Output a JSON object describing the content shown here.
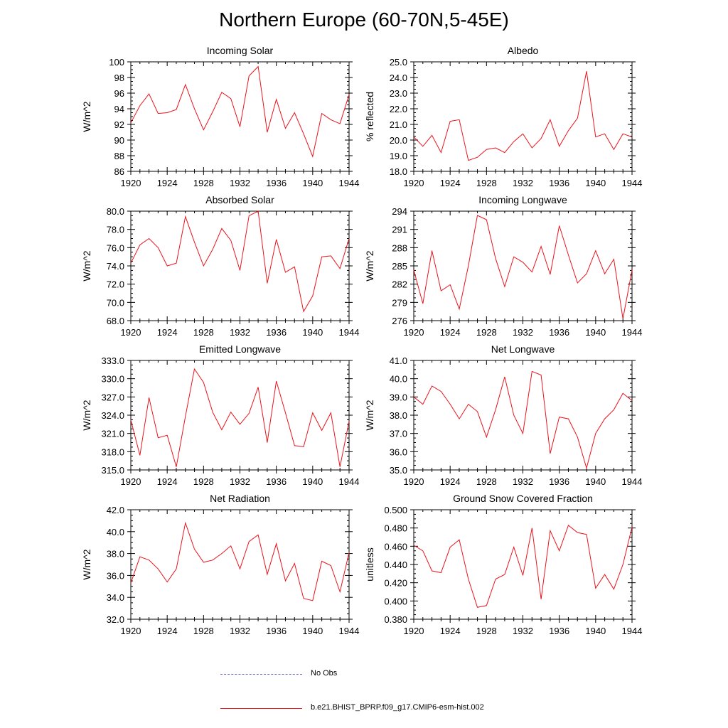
{
  "title": "Northern Europe (60-70N,5-45E)",
  "colors": {
    "model": "#e8141c",
    "obs": "#6d72c6",
    "axis": "#000000"
  },
  "legend": {
    "obs_label": "No Obs",
    "model_label": "b.e21.BHIST_BPRP.f09_g17.CMIP6-esm-hist.002"
  },
  "chart_data": [
    {
      "type": "line",
      "title": "Incoming Solar",
      "ylabel": "W/m^2",
      "xlim": [
        1920,
        1944
      ],
      "ylim": [
        86,
        100
      ],
      "xticks": [
        "1920",
        "1924",
        "1928",
        "1932",
        "1936",
        "1940",
        "1944"
      ],
      "yticks": [
        "86",
        "88",
        "90",
        "92",
        "94",
        "96",
        "98",
        "100"
      ],
      "ytick_values": [
        86,
        88,
        90,
        92,
        94,
        96,
        98,
        100
      ],
      "x": [
        1920,
        1921,
        1922,
        1923,
        1924,
        1925,
        1926,
        1927,
        1928,
        1929,
        1930,
        1931,
        1932,
        1933,
        1934,
        1935,
        1936,
        1937,
        1938,
        1939,
        1940,
        1941,
        1942,
        1943,
        1944
      ],
      "series": [
        {
          "name": "b.e21.BHIST_BPRP.f09_g17.CMIP6-esm-hist.002",
          "values": [
            92.2,
            94.4,
            95.9,
            93.4,
            93.5,
            93.9,
            97.1,
            94.0,
            91.3,
            93.6,
            96.1,
            95.3,
            91.7,
            98.2,
            99.4,
            91.0,
            95.2,
            91.5,
            93.5,
            90.8,
            87.9,
            93.4,
            92.6,
            92.1,
            95.8
          ]
        }
      ]
    },
    {
      "type": "line",
      "title": "Albedo",
      "ylabel": "% reflected",
      "xlim": [
        1920,
        1944
      ],
      "ylim": [
        18,
        25
      ],
      "xticks": [
        "1920",
        "1924",
        "1928",
        "1932",
        "1936",
        "1940",
        "1944"
      ],
      "yticks": [
        "18.0",
        "19.0",
        "20.0",
        "21.0",
        "22.0",
        "23.0",
        "24.0",
        "25.0"
      ],
      "ytick_values": [
        18,
        19,
        20,
        21,
        22,
        23,
        24,
        25
      ],
      "x": [
        1920,
        1921,
        1922,
        1923,
        1924,
        1925,
        1926,
        1927,
        1928,
        1929,
        1930,
        1931,
        1932,
        1933,
        1934,
        1935,
        1936,
        1937,
        1938,
        1939,
        1940,
        1941,
        1942,
        1943,
        1944
      ],
      "series": [
        {
          "name": "b.e21.BHIST_BPRP.f09_g17.CMIP6-esm-hist.002",
          "values": [
            20.2,
            19.6,
            20.3,
            19.2,
            21.2,
            21.3,
            18.7,
            18.9,
            19.4,
            19.5,
            19.2,
            19.9,
            20.4,
            19.5,
            20.1,
            21.3,
            19.6,
            20.6,
            21.4,
            24.4,
            20.2,
            20.4,
            19.4,
            20.4,
            20.2
          ]
        }
      ]
    },
    {
      "type": "line",
      "title": "Absorbed Solar",
      "ylabel": "W/m^2",
      "xlim": [
        1920,
        1944
      ],
      "ylim": [
        68,
        80
      ],
      "xticks": [
        "1920",
        "1924",
        "1928",
        "1932",
        "1936",
        "1940",
        "1944"
      ],
      "yticks": [
        "68.0",
        "70.0",
        "72.0",
        "74.0",
        "76.0",
        "78.0",
        "80.0"
      ],
      "ytick_values": [
        68,
        70,
        72,
        74,
        76,
        78,
        80
      ],
      "x": [
        1920,
        1921,
        1922,
        1923,
        1924,
        1925,
        1926,
        1927,
        1928,
        1929,
        1930,
        1931,
        1932,
        1933,
        1934,
        1935,
        1936,
        1937,
        1938,
        1939,
        1940,
        1941,
        1942,
        1943,
        1944
      ],
      "series": [
        {
          "name": "b.e21.BHIST_BPRP.f09_g17.CMIP6-esm-hist.002",
          "values": [
            74.3,
            76.3,
            77.0,
            76.0,
            74.0,
            74.3,
            79.4,
            76.6,
            74.0,
            75.8,
            78.1,
            76.8,
            73.5,
            79.5,
            80.0,
            72.1,
            76.9,
            73.3,
            73.9,
            69.0,
            70.7,
            75.0,
            75.1,
            73.7,
            77.0
          ]
        }
      ]
    },
    {
      "type": "line",
      "title": "Incoming Longwave",
      "ylabel": "W/m^2",
      "xlim": [
        1920,
        1944
      ],
      "ylim": [
        276,
        294
      ],
      "xticks": [
        "1920",
        "1924",
        "1928",
        "1932",
        "1936",
        "1940",
        "1944"
      ],
      "yticks": [
        "276",
        "279",
        "282",
        "285",
        "288",
        "291",
        "294"
      ],
      "ytick_values": [
        276,
        279,
        282,
        285,
        288,
        291,
        294
      ],
      "x": [
        1920,
        1921,
        1922,
        1923,
        1924,
        1925,
        1926,
        1927,
        1928,
        1929,
        1930,
        1931,
        1932,
        1933,
        1934,
        1935,
        1936,
        1937,
        1938,
        1939,
        1940,
        1941,
        1942,
        1943,
        1944
      ],
      "series": [
        {
          "name": "b.e21.BHIST_BPRP.f09_g17.CMIP6-esm-hist.002",
          "values": [
            284.3,
            278.8,
            287.5,
            280.9,
            281.9,
            277.9,
            285.0,
            293.3,
            292.6,
            286.2,
            281.6,
            286.5,
            285.6,
            284.0,
            288.2,
            283.6,
            291.6,
            286.8,
            282.2,
            283.7,
            287.5,
            283.7,
            286.1,
            276.3,
            284.3
          ]
        }
      ]
    },
    {
      "type": "line",
      "title": "Emitted Longwave",
      "ylabel": "W/m^2",
      "xlim": [
        1920,
        1944
      ],
      "ylim": [
        315,
        333
      ],
      "xticks": [
        "1920",
        "1924",
        "1928",
        "1932",
        "1936",
        "1940",
        "1944"
      ],
      "yticks": [
        "315.0",
        "318.0",
        "321.0",
        "324.0",
        "327.0",
        "330.0",
        "333.0"
      ],
      "ytick_values": [
        315,
        318,
        321,
        324,
        327,
        330,
        333
      ],
      "x": [
        1920,
        1921,
        1922,
        1923,
        1924,
        1925,
        1926,
        1927,
        1928,
        1929,
        1930,
        1931,
        1932,
        1933,
        1934,
        1935,
        1936,
        1937,
        1938,
        1939,
        1940,
        1941,
        1942,
        1943,
        1944
      ],
      "series": [
        {
          "name": "b.e21.BHIST_BPRP.f09_g17.CMIP6-esm-hist.002",
          "values": [
            323.2,
            317.4,
            326.9,
            320.3,
            320.7,
            315.5,
            323.8,
            331.6,
            329.4,
            324.5,
            321.6,
            324.5,
            322.5,
            324.3,
            328.6,
            319.5,
            329.6,
            324.4,
            319.0,
            318.8,
            324.4,
            321.5,
            324.4,
            315.5,
            323.0
          ]
        }
      ]
    },
    {
      "type": "line",
      "title": "Net Longwave",
      "ylabel": "W/m^2",
      "xlim": [
        1920,
        1944
      ],
      "ylim": [
        35,
        41
      ],
      "xticks": [
        "1920",
        "1924",
        "1928",
        "1932",
        "1936",
        "1940",
        "1944"
      ],
      "yticks": [
        "35.0",
        "36.0",
        "37.0",
        "38.0",
        "39.0",
        "40.0",
        "41.0"
      ],
      "ytick_values": [
        35,
        36,
        37,
        38,
        39,
        40,
        41
      ],
      "x": [
        1920,
        1921,
        1922,
        1923,
        1924,
        1925,
        1926,
        1927,
        1928,
        1929,
        1930,
        1931,
        1932,
        1933,
        1934,
        1935,
        1936,
        1937,
        1938,
        1939,
        1940,
        1941,
        1942,
        1943,
        1944
      ],
      "series": [
        {
          "name": "b.e21.BHIST_BPRP.f09_g17.CMIP6-esm-hist.002",
          "values": [
            39.0,
            38.6,
            39.6,
            39.3,
            38.6,
            37.8,
            38.6,
            38.2,
            36.8,
            38.3,
            40.1,
            38.0,
            37.0,
            40.4,
            40.2,
            35.9,
            37.9,
            37.8,
            36.8,
            35.1,
            37.0,
            37.8,
            38.3,
            39.2,
            38.8
          ]
        }
      ]
    },
    {
      "type": "line",
      "title": "Net Radiation",
      "ylabel": "W/m^2",
      "xlim": [
        1920,
        1944
      ],
      "ylim": [
        32,
        42
      ],
      "xticks": [
        "1920",
        "1924",
        "1928",
        "1932",
        "1936",
        "1940",
        "1944"
      ],
      "yticks": [
        "32.0",
        "34.0",
        "36.0",
        "38.0",
        "40.0",
        "42.0"
      ],
      "ytick_values": [
        32,
        34,
        36,
        38,
        40,
        42
      ],
      "x": [
        1920,
        1921,
        1922,
        1923,
        1924,
        1925,
        1926,
        1927,
        1928,
        1929,
        1930,
        1931,
        1932,
        1933,
        1934,
        1935,
        1936,
        1937,
        1938,
        1939,
        1940,
        1941,
        1942,
        1943,
        1944
      ],
      "series": [
        {
          "name": "b.e21.BHIST_BPRP.f09_g17.CMIP6-esm-hist.002",
          "values": [
            35.3,
            37.7,
            37.4,
            36.6,
            35.4,
            36.6,
            40.8,
            38.4,
            37.2,
            37.4,
            38.0,
            38.7,
            36.6,
            39.1,
            39.7,
            36.1,
            38.9,
            35.5,
            37.1,
            33.9,
            33.7,
            37.3,
            36.9,
            34.5,
            38.1
          ]
        }
      ]
    },
    {
      "type": "line",
      "title": "Ground Snow Covered Fraction",
      "ylabel": "unitless",
      "xlim": [
        1920,
        1944
      ],
      "ylim": [
        0.38,
        0.5
      ],
      "xticks": [
        "1920",
        "1924",
        "1928",
        "1932",
        "1936",
        "1940",
        "1944"
      ],
      "yticks": [
        "0.380",
        "0.400",
        "0.420",
        "0.440",
        "0.460",
        "0.480",
        "0.500"
      ],
      "ytick_values": [
        0.38,
        0.4,
        0.42,
        0.44,
        0.46,
        0.48,
        0.5
      ],
      "x": [
        1920,
        1921,
        1922,
        1923,
        1924,
        1925,
        1926,
        1927,
        1928,
        1929,
        1930,
        1931,
        1932,
        1933,
        1934,
        1935,
        1936,
        1937,
        1938,
        1939,
        1940,
        1941,
        1942,
        1943,
        1944
      ],
      "series": [
        {
          "name": "b.e21.BHIST_BPRP.f09_g17.CMIP6-esm-hist.002",
          "values": [
            0.461,
            0.455,
            0.433,
            0.431,
            0.459,
            0.467,
            0.424,
            0.393,
            0.395,
            0.424,
            0.429,
            0.459,
            0.428,
            0.48,
            0.402,
            0.477,
            0.455,
            0.483,
            0.475,
            0.473,
            0.414,
            0.429,
            0.413,
            0.44,
            0.481
          ]
        }
      ]
    }
  ]
}
